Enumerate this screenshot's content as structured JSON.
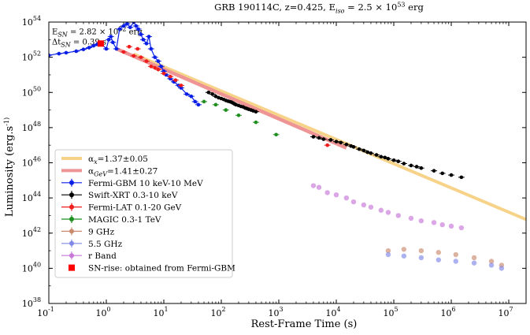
{
  "chart_data": {
    "type": "scatter",
    "title": "GRB 190114C,  z=0.425,  E_iso = 2.5 × 10^53 erg",
    "xlabel": "Rest-Frame Time (s)",
    "ylabel": "Luminosity (erg.s^-1)",
    "xscale": "log",
    "yscale": "log",
    "xlim": [
      0.1,
      20000000
    ],
    "ylim": [
      1e+38,
      1e+54
    ],
    "x_ticks": [
      {
        "base": "10",
        "exp": "-1",
        "value": 0.1
      },
      {
        "base": "10",
        "exp": "0",
        "value": 1
      },
      {
        "base": "10",
        "exp": "1",
        "value": 10
      },
      {
        "base": "10",
        "exp": "2",
        "value": 100
      },
      {
        "base": "10",
        "exp": "3",
        "value": 1000
      },
      {
        "base": "10",
        "exp": "4",
        "value": 10000
      },
      {
        "base": "10",
        "exp": "5",
        "value": 100000
      },
      {
        "base": "10",
        "exp": "6",
        "value": 1000000
      },
      {
        "base": "10",
        "exp": "7",
        "value": 10000000
      }
    ],
    "y_ticks": [
      {
        "base": "10",
        "exp": "38",
        "value": 1e+38
      },
      {
        "base": "10",
        "exp": "40",
        "value": 1e+40
      },
      {
        "base": "10",
        "exp": "42",
        "value": 1e+42
      },
      {
        "base": "10",
        "exp": "44",
        "value": 1e+44
      },
      {
        "base": "10",
        "exp": "46",
        "value": 1e+46
      },
      {
        "base": "10",
        "exp": "48",
        "value": 1e+48
      },
      {
        "base": "10",
        "exp": "50",
        "value": 1e+50
      },
      {
        "base": "10",
        "exp": "52",
        "value": 1e+52
      },
      {
        "base": "10",
        "exp": "54",
        "value": 1e+54
      }
    ],
    "annotations": [
      {
        "text": "E_SN = 2.82 × 10^52 erg",
        "x": 0.1,
        "y": 3e+53
      },
      {
        "text": "Δt_SN = 0.39 s",
        "x": 0.1,
        "y": 8e+52
      }
    ],
    "legend_position": "lower-left",
    "series": [
      {
        "name": "α_x=1.37±0.05",
        "kind": "line",
        "color": "#f7d38a",
        "x": [
          3,
          20000000
        ],
        "y": [
          1.5e+52,
          6e+42
        ]
      },
      {
        "name": "α_GeV=1.41±0.27",
        "kind": "line",
        "color": "#ee9494",
        "x": [
          1.5,
          15000
        ],
        "y": [
          3e+52,
          7e+46
        ]
      },
      {
        "name": "Fermi-GBM 10 keV-10 MeV",
        "kind": "scatter",
        "color": "#0a1ee6",
        "x": [
          0.1,
          0.15,
          0.2,
          0.3,
          0.4,
          0.5,
          0.6,
          0.7,
          0.8,
          1.0,
          1.1,
          1.2,
          1.3,
          1.5,
          1.7,
          2.0,
          2.3,
          2.6,
          3.0,
          3.3,
          3.6,
          4.0,
          4.4,
          5.0,
          5.5,
          6.0,
          7.0,
          8.0,
          9.0,
          10.0,
          11.0,
          13.0,
          15.0,
          18.0,
          20.0,
          25.0,
          30.0,
          35.0,
          40.0
        ],
        "y": [
          1.3e+52,
          1.6e+52,
          1.8e+52,
          2.2e+52,
          2.8e+52,
          3.5e+52,
          4.5e+52,
          5.5e+52,
          6.5e+52,
          3e+52,
          1e+53,
          1.5e+53,
          7e+52,
          3e+52,
          4e+53,
          6e+53,
          8e+53,
          5e+53,
          1e+54,
          6e+53,
          4e+53,
          2e+53,
          1e+53,
          6e+52,
          1.5e+53,
          3e+52,
          1e+52,
          6e+51,
          3e+51,
          1.6e+51,
          1e+51,
          6e+50,
          4e+50,
          2.5e+50,
          1.8e+50,
          8e+49,
          6e+49,
          3e+49,
          2e+49
        ]
      },
      {
        "name": "Swift-XRT 0.3-10 keV",
        "kind": "scatter",
        "color": "#000000",
        "x": [
          60,
          70,
          80,
          90,
          100,
          110,
          120,
          130,
          140,
          150,
          160,
          170,
          180,
          200,
          220,
          240,
          260,
          280,
          300,
          330,
          360,
          400,
          4000,
          5000,
          6000,
          8000,
          10000,
          12000,
          15000,
          18000,
          20000,
          25000,
          30000,
          35000,
          40000,
          50000,
          60000,
          70000,
          80000,
          100000,
          120000,
          150000,
          200000,
          250000,
          300000,
          500000,
          700000,
          1000000,
          1500000
        ],
        "y": [
          1e+50,
          8e+49,
          6e+49,
          5e+49,
          4.5e+49,
          4e+49,
          3.5e+49,
          3.2e+49,
          3e+49,
          2.8e+49,
          2.5e+49,
          2.2e+49,
          2e+49,
          1.8e+49,
          1.6e+49,
          1.5e+49,
          1.3e+49,
          1.2e+49,
          1.1e+49,
          1e+49,
          9e+48,
          8e+48,
          3e+47,
          2.6e+47,
          2.2e+47,
          2e+47,
          1.6e+47,
          1.4e+47,
          1.1e+47,
          9e+46,
          8e+46,
          6e+46,
          5e+46,
          4e+46,
          3.5e+46,
          2.8e+46,
          2.2e+46,
          2e+46,
          1.7e+46,
          1.4e+46,
          1.2e+46,
          9e+45,
          7e+45,
          6e+45,
          5e+45,
          3.5e+45,
          2.5e+45,
          2e+45,
          1.5e+45
        ]
      },
      {
        "name": "Fermi-LAT 0.1-20 GeV",
        "kind": "scatter",
        "color": "#ee1c1c",
        "x": [
          0.8,
          2.0,
          2.5,
          3.0,
          3.5,
          4.0,
          5.0,
          6.0,
          7.0,
          8.0,
          10.0,
          13.0,
          16.0,
          20.0,
          7000
        ],
        "y": [
          7e+52,
          2e+52,
          4e+52,
          1.2e+52,
          3e+52,
          1e+52,
          6e+51,
          3e+51,
          2.5e+51,
          2e+51,
          1.2e+51,
          8e+50,
          5e+50,
          2.5e+50,
          1e+47
        ]
      },
      {
        "name": "MAGIC 0.3-1 TeV",
        "kind": "scatter",
        "color": "#1f8f1f",
        "x": [
          50,
          80,
          120,
          200,
          400,
          900
        ],
        "y": [
          3e+49,
          2e+49,
          1e+49,
          5e+48,
          2e+48,
          4e+47
        ]
      },
      {
        "name": "9 GHz",
        "kind": "scatter",
        "color": "#c98a6e",
        "x": [
          80000,
          150000,
          300000,
          600000,
          1200000,
          2500000,
          5000000,
          7500000
        ],
        "y": [
          1e+41,
          1.2e+41,
          1e+41,
          8e+40,
          6e+40,
          4e+40,
          2.5e+40,
          1.5e+40
        ]
      },
      {
        "name": "5.5 GHz",
        "kind": "scatter",
        "color": "#7f88e6",
        "x": [
          80000,
          150000,
          300000,
          600000,
          1200000,
          2500000,
          5000000,
          7500000
        ],
        "y": [
          6e+40,
          5e+40,
          4e+40,
          3e+40,
          2.5e+40,
          2e+40,
          1.5e+40,
          1e+40
        ]
      },
      {
        "name": "r Band",
        "kind": "scatter",
        "color": "#c777d8",
        "x": [
          4000,
          5000,
          7000,
          10000,
          15000,
          20000,
          30000,
          40000,
          60000,
          80000,
          120000,
          200000,
          300000,
          500000,
          700000,
          1000000,
          1500000
        ],
        "y": [
          5e+44,
          4e+44,
          2e+44,
          1.5e+44,
          1e+44,
          6e+43,
          4e+43,
          3e+43,
          2e+43,
          1.5e+43,
          1e+43,
          7e+42,
          5e+42,
          4e+42,
          3e+42,
          2.5e+42,
          2e+42
        ]
      },
      {
        "name": "SN-rise: obtained from Fermi-GBM",
        "kind": "scatter",
        "color": "#ff0000",
        "marker": "square",
        "x": [
          0.8
        ],
        "y": [
          6e+52
        ]
      }
    ]
  }
}
